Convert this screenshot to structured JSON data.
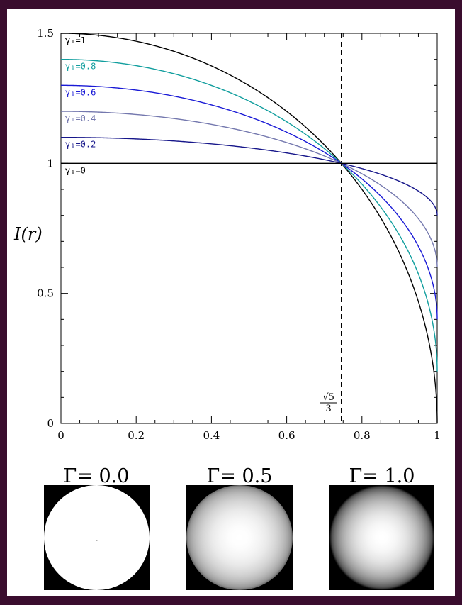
{
  "chart_data": {
    "type": "line",
    "title": "",
    "xlabel": "",
    "ylabel": "I(r)",
    "xlim": [
      0,
      1
    ],
    "ylim": [
      0,
      1.5
    ],
    "grid": false,
    "xticks": [
      {
        "value": 0,
        "label": "0"
      },
      {
        "value": 0.2,
        "label": "0.2"
      },
      {
        "value": 0.4,
        "label": "0.4"
      },
      {
        "value": 0.6,
        "label": "0.6"
      },
      {
        "value": 0.8,
        "label": "0.8"
      },
      {
        "value": 1,
        "label": "1"
      }
    ],
    "yticks": [
      {
        "value": 0,
        "label": "0"
      },
      {
        "value": 0.5,
        "label": "0.5"
      },
      {
        "value": 1,
        "label": "1"
      },
      {
        "value": 1.5,
        "label": "1.5"
      }
    ],
    "x": [
      0,
      0.1,
      0.2,
      0.3,
      0.4,
      0.5,
      0.6,
      0.7,
      0.745,
      0.8,
      0.9,
      0.95,
      1.0
    ],
    "series": [
      {
        "name": "γ₁=1",
        "gamma": 1.0,
        "color": "#000000",
        "values": [
          1.5,
          1.492,
          1.47,
          1.431,
          1.375,
          1.299,
          1.2,
          1.071,
          1.0,
          0.9,
          0.654,
          0.468,
          0.0
        ]
      },
      {
        "name": "γ₁=0.8",
        "gamma": 0.8,
        "color": "#119e9e",
        "values": [
          1.4,
          1.394,
          1.376,
          1.345,
          1.3,
          1.239,
          1.16,
          1.057,
          1.0,
          0.92,
          0.723,
          0.575,
          0.2
        ]
      },
      {
        "name": "γ₁=0.6",
        "gamma": 0.6,
        "color": "#1a1ad6",
        "values": [
          1.3,
          1.295,
          1.282,
          1.259,
          1.225,
          1.18,
          1.12,
          1.043,
          1.0,
          0.94,
          0.792,
          0.681,
          0.4
        ]
      },
      {
        "name": "γ₁=0.4",
        "gamma": 0.4,
        "color": "#7478ae",
        "values": [
          1.2,
          1.197,
          1.188,
          1.172,
          1.15,
          1.12,
          1.08,
          1.029,
          1.0,
          0.96,
          0.862,
          0.787,
          0.6
        ]
      },
      {
        "name": "γ₁=0.2",
        "gamma": 0.2,
        "color": "#16168a",
        "values": [
          1.1,
          1.098,
          1.094,
          1.086,
          1.075,
          1.06,
          1.04,
          1.014,
          1.0,
          0.98,
          0.931,
          0.894,
          0.8
        ]
      },
      {
        "name": "γ₁=0",
        "gamma": 0.0,
        "color": "#000000",
        "values": [
          1.0,
          1.0,
          1.0,
          1.0,
          1.0,
          1.0,
          1.0,
          1.0,
          1.0,
          1.0,
          1.0,
          1.0,
          1.0
        ]
      }
    ],
    "vline": {
      "x": 0.745,
      "label_num": "√5",
      "label_den": "3",
      "style": "dashed"
    }
  },
  "disks": [
    {
      "title": "Γ= 0.0",
      "gamma": 0.0
    },
    {
      "title": "Γ= 0.5",
      "gamma": 0.5
    },
    {
      "title": "Γ= 1.0",
      "gamma": 1.0
    }
  ]
}
